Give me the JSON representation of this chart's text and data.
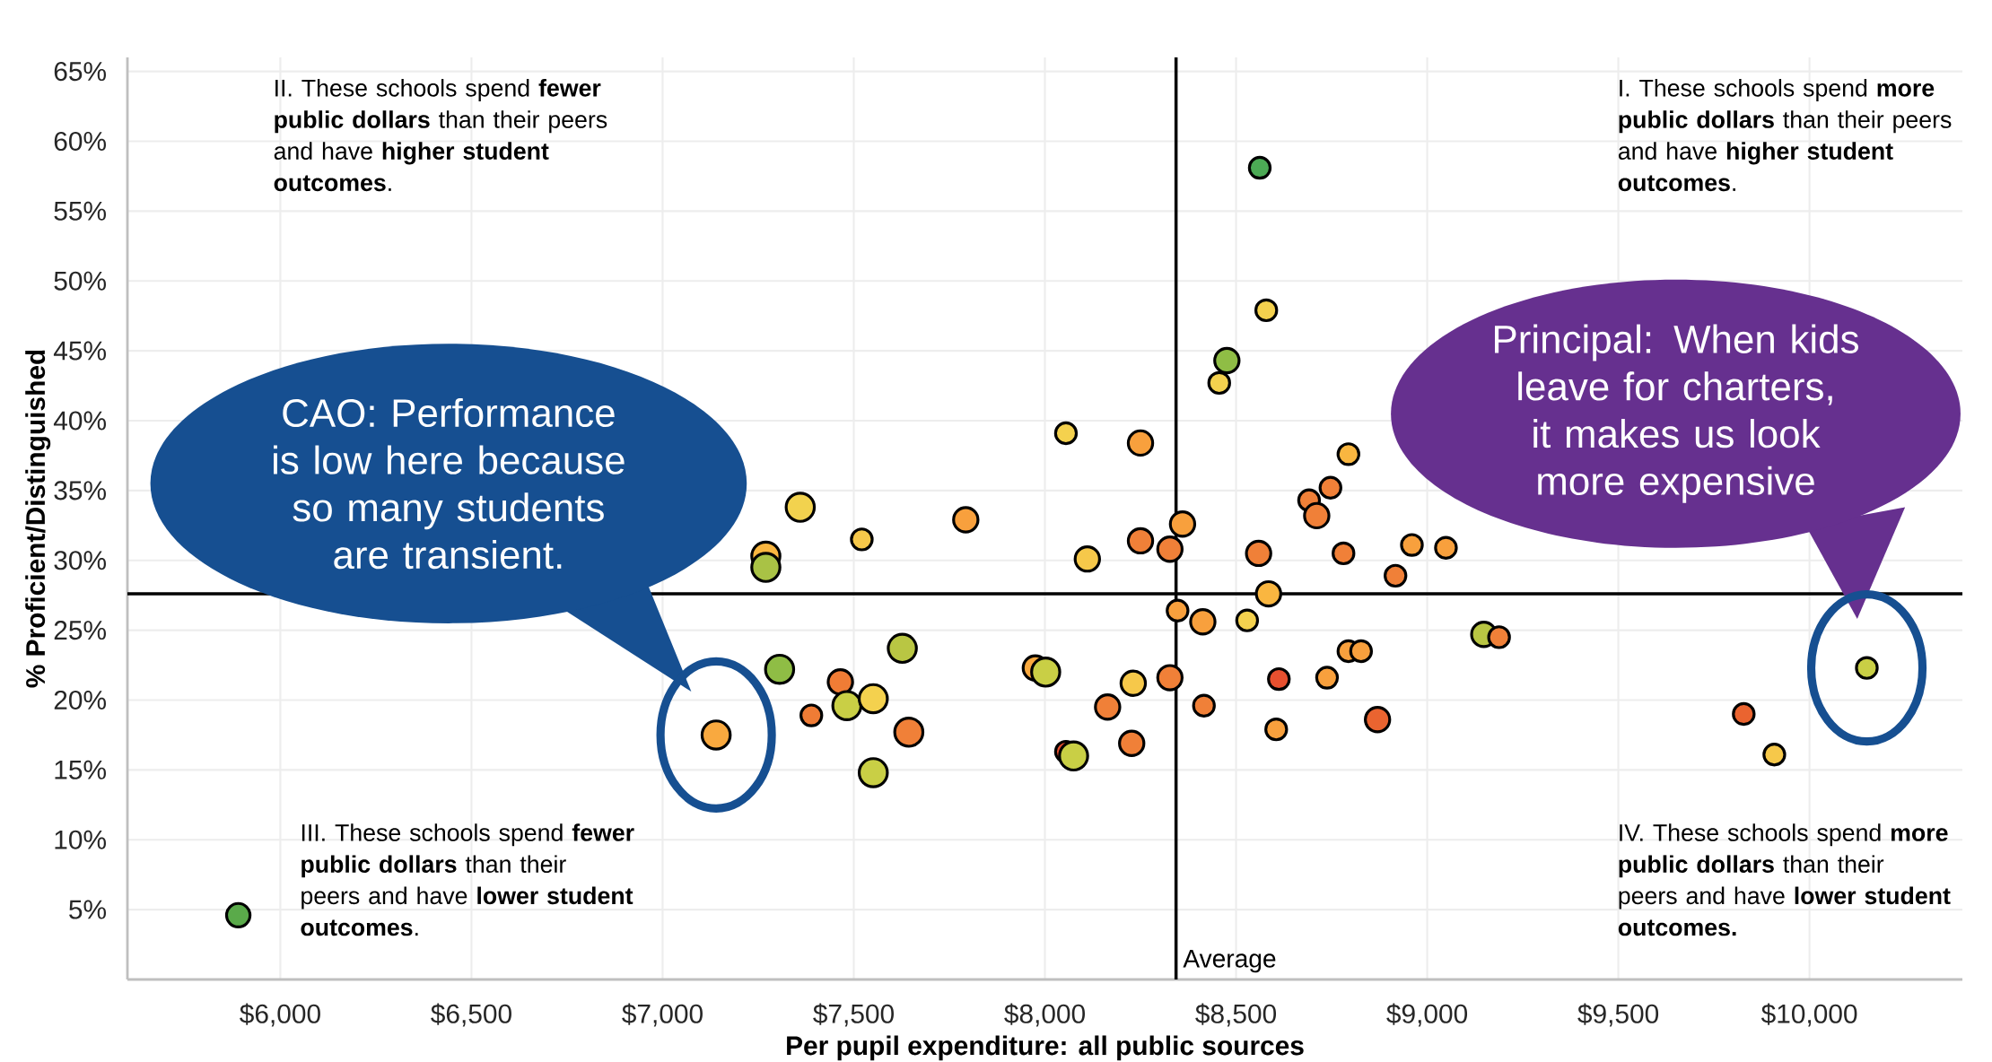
{
  "chart_data": {
    "type": "bubble",
    "xlabel": "Per pupil expenditure: all public sources",
    "ylabel": "% Proficient/Distinguished",
    "xlim": [
      5600,
      10400
    ],
    "ylim": [
      0,
      66
    ],
    "xticks": [
      {
        "value": 6000,
        "label": "$6,000"
      },
      {
        "value": 6500,
        "label": "$6,500"
      },
      {
        "value": 7000,
        "label": "$7,000"
      },
      {
        "value": 7500,
        "label": "$7,500"
      },
      {
        "value": 8000,
        "label": "$8,000"
      },
      {
        "value": 8500,
        "label": "$8,500"
      },
      {
        "value": 9000,
        "label": "$9,000"
      },
      {
        "value": 9500,
        "label": "$9,500"
      },
      {
        "value": 10000,
        "label": "$10,000"
      }
    ],
    "yticks": [
      {
        "value": 5,
        "label": "5%"
      },
      {
        "value": 10,
        "label": "10%"
      },
      {
        "value": 15,
        "label": "15%"
      },
      {
        "value": 20,
        "label": "20%"
      },
      {
        "value": 25,
        "label": "25%"
      },
      {
        "value": 30,
        "label": "30%"
      },
      {
        "value": 35,
        "label": "35%"
      },
      {
        "value": 40,
        "label": "40%"
      },
      {
        "value": 45,
        "label": "45%"
      },
      {
        "value": 50,
        "label": "50%"
      },
      {
        "value": 55,
        "label": "55%"
      },
      {
        "value": 60,
        "label": "60%"
      },
      {
        "value": 65,
        "label": "65%"
      }
    ],
    "grid": true,
    "x": [
      5890,
      7140,
      7270,
      7270,
      7360,
      7306,
      7389,
      7465,
      7482,
      7551,
      7551,
      7521,
      7627,
      7644,
      7793,
      7975,
      8002,
      8055,
      8055,
      8075,
      8111,
      8164,
      8227,
      8231,
      8250,
      8250,
      8327,
      8327,
      8360,
      8347,
      8413,
      8416,
      8456,
      8476,
      8529,
      8559,
      8562,
      8579,
      8585,
      8612,
      8605,
      8691,
      8711,
      8747,
      8738,
      8781,
      8794,
      8794,
      8827,
      8870,
      8917,
      8960,
      9049,
      9148,
      9188,
      9828,
      9908,
      10150
    ],
    "values": [
      4.6,
      17.5,
      30.3,
      29.5,
      33.8,
      22.2,
      18.9,
      21.3,
      19.6,
      20.1,
      14.8,
      31.5,
      23.7,
      17.7,
      32.9,
      22.3,
      22.0,
      39.1,
      16.3,
      16.0,
      30.1,
      19.5,
      16.9,
      21.2,
      38.4,
      31.4,
      30.8,
      21.6,
      32.6,
      26.4,
      25.6,
      19.6,
      42.7,
      44.3,
      25.7,
      30.5,
      58.1,
      47.9,
      27.6,
      21.5,
      17.9,
      34.3,
      33.2,
      35.2,
      21.6,
      30.5,
      37.6,
      23.5,
      23.5,
      18.6,
      28.9,
      31.1,
      30.9,
      24.7,
      24.5,
      19.0,
      16.1,
      22.3
    ],
    "sizes": [
      0.7,
      1,
      1,
      1,
      1,
      1,
      0.55,
      0.75,
      1,
      1,
      1,
      0.55,
      1,
      1,
      0.75,
      0.75,
      1,
      0.55,
      0.55,
      1,
      0.75,
      0.75,
      0.75,
      0.75,
      0.75,
      0.75,
      0.75,
      0.75,
      0.75,
      0.55,
      0.75,
      0.55,
      0.55,
      0.75,
      0.55,
      0.75,
      0.55,
      0.55,
      0.75,
      0.55,
      0.55,
      0.55,
      0.75,
      0.55,
      0.55,
      0.55,
      0.55,
      0.55,
      0.55,
      0.75,
      0.55,
      0.55,
      0.55,
      0.75,
      0.55,
      0.55,
      0.55,
      0.55
    ],
    "colors": [
      "#5aaa4a",
      "#f9a93f",
      "#f9b640",
      "#a9c245",
      "#f2d24e",
      "#8fbd45",
      "#f07c35",
      "#f07c35",
      "#c9cf45",
      "#f4d14e",
      "#c9cf45",
      "#f6c84a",
      "#b9c643",
      "#f08038",
      "#f8a03d",
      "#f9a93f",
      "#c9cf45",
      "#f4d14e",
      "#e8502f",
      "#c9cf45",
      "#f6c84a",
      "#f08038",
      "#f08038",
      "#f6c84a",
      "#f8a03d",
      "#f08038",
      "#f08038",
      "#f08038",
      "#f8a03d",
      "#f8a03d",
      "#f8a03d",
      "#f08038",
      "#f4d14e",
      "#8fbd45",
      "#f4d14e",
      "#f08038",
      "#4caa55",
      "#f4d14e",
      "#f9b640",
      "#e8502f",
      "#f8a03d",
      "#f08038",
      "#f08038",
      "#f08038",
      "#f8a03d",
      "#f08038",
      "#f9b640",
      "#f8a03d",
      "#f8a03d",
      "#ea6430",
      "#f08038",
      "#f8a03d",
      "#f8a03d",
      "#b9c643",
      "#f08038",
      "#ea6430",
      "#f6c84a",
      "#c9cf45"
    ],
    "ref_lines": [
      {
        "axis": "x",
        "value": 8343,
        "label": "Average"
      },
      {
        "axis": "y",
        "value": 27.6
      }
    ],
    "annotations": [
      "II. These schools spend **fewer public dollars** than their peers and have **higher student outcomes**.",
      "I. These schools spend **more public dollars** than their peers and have **higher student outcomes**.",
      "III. These schools spend **fewer public dollars** than their peers and have **lower student outcomes**.",
      "IV. These schools spend **more public dollars** than their peers and have **lower student outcomes.**",
      "CAO: Performance is low here because so many students are transient.",
      "Principal: When kids leave for charters, it makes us look more expensive"
    ]
  }
}
